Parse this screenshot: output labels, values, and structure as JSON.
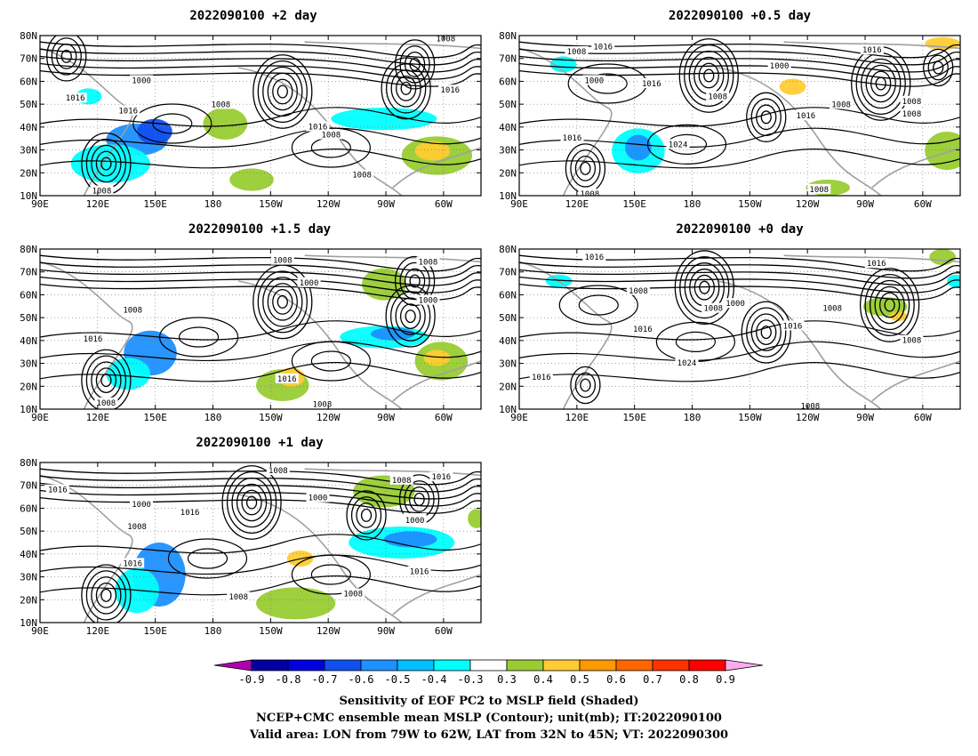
{
  "chart_data": [
    {
      "type": "heatmap",
      "title": "2022090100 +2 day",
      "lat_ticks": [
        "10N",
        "20N",
        "30N",
        "40N",
        "50N",
        "60N",
        "70N",
        "80N"
      ],
      "lon_ticks": [
        "90E",
        "120E",
        "150E",
        "180",
        "150W",
        "120W",
        "90W",
        "60W"
      ],
      "contour_labels": [
        "1008",
        "1000",
        "1008",
        "1016",
        "1016",
        "1008",
        "1016",
        "1016",
        "1008",
        "1008"
      ]
    },
    {
      "type": "heatmap",
      "title": "2022090100 +0.5 day",
      "lat_ticks": [
        "10N",
        "20N",
        "30N",
        "40N",
        "50N",
        "60N",
        "70N",
        "80N"
      ],
      "lon_ticks": [
        "90E",
        "120E",
        "150E",
        "180",
        "150W",
        "120W",
        "90W",
        "60W"
      ],
      "contour_labels": [
        "1016",
        "1008",
        "1000",
        "1016",
        "1008",
        "1000",
        "1016",
        "1008",
        "1016",
        "1008",
        "1016",
        "1024",
        "1008",
        "1008",
        "1008"
      ]
    },
    {
      "type": "heatmap",
      "title": "2022090100 +1.5 day",
      "lat_ticks": [
        "10N",
        "20N",
        "30N",
        "40N",
        "50N",
        "60N",
        "70N",
        "80N"
      ],
      "lon_ticks": [
        "90E",
        "120E",
        "150E",
        "180",
        "150W",
        "120W",
        "90W",
        "60W"
      ],
      "contour_labels": [
        "1008",
        "1008",
        "1000",
        "1000",
        "1008",
        "1016",
        "1016",
        "1008",
        "1008"
      ]
    },
    {
      "type": "heatmap",
      "title": "2022090100 +0 day",
      "lat_ticks": [
        "10N",
        "20N",
        "30N",
        "40N",
        "50N",
        "60N",
        "70N",
        "80N"
      ],
      "lon_ticks": [
        "90E",
        "120E",
        "150E",
        "180",
        "150W",
        "120W",
        "90W",
        "60W"
      ],
      "contour_labels": [
        "1016",
        "1016",
        "1008",
        "1008",
        "1000",
        "1008",
        "1016",
        "1016",
        "1008",
        "1024",
        "1016",
        "1008"
      ]
    },
    {
      "type": "heatmap",
      "title": "2022090100 +1 day",
      "lat_ticks": [
        "10N",
        "20N",
        "30N",
        "40N",
        "50N",
        "60N",
        "70N",
        "80N"
      ],
      "lon_ticks": [
        "90E",
        "120E",
        "150E",
        "180",
        "150W",
        "120W",
        "90W",
        "60W"
      ],
      "contour_labels": [
        "1008",
        "1016",
        "1008",
        "1016",
        "1000",
        "1000",
        "1008",
        "1016",
        "1008",
        "1000",
        "1016",
        "1016",
        "1008",
        "1008"
      ]
    }
  ],
  "colorbar": {
    "ticks": [
      "-0.9",
      "-0.8",
      "-0.7",
      "-0.6",
      "-0.5",
      "-0.4",
      "-0.3",
      "0.3",
      "0.4",
      "0.5",
      "0.6",
      "0.7",
      "0.8",
      "0.9"
    ],
    "colors": [
      "#b000b0",
      "#0000a0",
      "#0000e0",
      "#1050f0",
      "#1e90ff",
      "#00bfff",
      "#00ffff",
      "#ffffff",
      "#99cc33",
      "#ffcc33",
      "#ff9900",
      "#ff6600",
      "#ff3300",
      "#ff0000",
      "#ffaaee"
    ]
  },
  "footer": {
    "line1": "Sensitivity of EOF PC2 to MSLP field (Shaded)",
    "line2": "NCEP+CMC ensemble mean MSLP (Contour); unit(mb); IT:2022090100",
    "line3": "Valid area: LON from 79W to 62W, LAT from 32N to 45N; VT: 2022090300"
  }
}
